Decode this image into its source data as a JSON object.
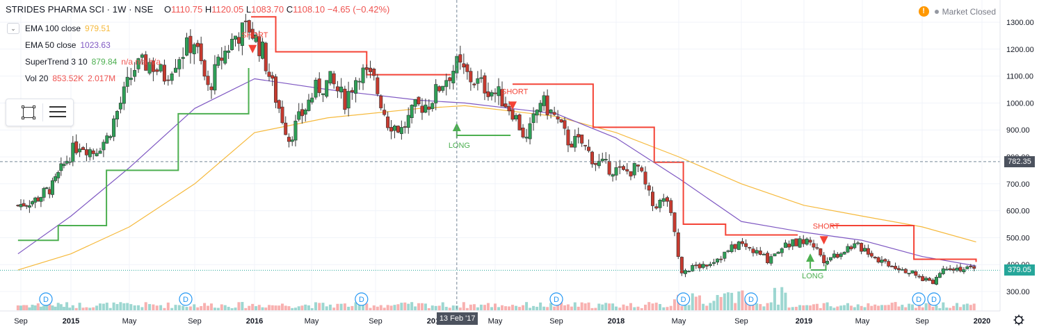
{
  "header": {
    "symbol": "STRIDES PHARMA SCI · 1W · NSE",
    "o_label": "O",
    "o": "1110.75",
    "h_label": "H",
    "h": "1120.05",
    "l_label": "L",
    "l": "1083.70",
    "c_label": "C",
    "c": "1108.10",
    "change": "−4.65 (−0.42%)"
  },
  "indicators": [
    {
      "name": "EMA 100 close",
      "value": "979.51",
      "color": "#f6b93b"
    },
    {
      "name": "EMA 50 close",
      "value": "1023.63",
      "color": "#7e57c2"
    },
    {
      "name": "SuperTrend 3 10",
      "value": "879.84",
      "extra": "n/a n/a n/a",
      "color": "#4caf50"
    },
    {
      "name": "Vol 20",
      "value": "853.52K",
      "extra": "2.017M",
      "color": "#ef5350"
    }
  ],
  "status": {
    "warning_icon": "!",
    "market": "Market Closed"
  },
  "price_tags": {
    "last": "379.05",
    "cross": "782.35"
  },
  "crosshair": {
    "date": "13 Feb '17"
  },
  "colors": {
    "up": "#26a69a",
    "up_candle": "#2e9f57",
    "down": "#ef5350",
    "down_candle": "#c63a2f",
    "supertrend_up": "#4caf50",
    "supertrend_down": "#f44336",
    "ema100": "#f6b93b",
    "ema50": "#7e57c2"
  },
  "chart_data": {
    "type": "candlestick",
    "symbol": "STRIDES PHARMA SCI",
    "interval": "1W",
    "exchange": "NSE",
    "y_axis": {
      "range": [
        265,
        1340
      ],
      "ticks": [
        300,
        400,
        500,
        600,
        700,
        800,
        900,
        1000,
        1100,
        1200,
        1300
      ],
      "tick_labels": [
        "300.00",
        "400.00",
        "500.00",
        "600.00",
        "700.00",
        "800.00",
        "900.00",
        "1000.00",
        "1100.00",
        "1200.00",
        "1300.00"
      ]
    },
    "x_axis": {
      "ticks": [
        "Sep",
        "2015",
        "May",
        "Sep",
        "2016",
        "May",
        "Sep",
        "2017",
        "May",
        "Sep",
        "2018",
        "May",
        "Sep",
        "2019",
        "May",
        "Sep",
        "2020"
      ],
      "tick_dates": [
        "2014-09-01",
        "2015-01-01",
        "2015-05-01",
        "2015-09-01",
        "2016-01-01",
        "2016-05-01",
        "2016-09-01",
        "2017-01-01",
        "2017-05-01",
        "2017-09-01",
        "2018-01-01",
        "2018-05-01",
        "2018-09-01",
        "2019-01-01",
        "2019-05-01",
        "2019-09-01",
        "2020-01-01"
      ]
    },
    "close_series": {
      "dates": [
        "2014-08-25",
        "2014-10-06",
        "2014-11-17",
        "2014-12-29",
        "2015-01-19",
        "2015-02-16",
        "2015-03-16",
        "2015-04-13",
        "2015-05-11",
        "2015-06-08",
        "2015-07-06",
        "2015-08-03",
        "2015-08-31",
        "2015-09-28",
        "2015-10-26",
        "2015-11-23",
        "2015-12-21",
        "2016-01-18",
        "2016-02-15",
        "2016-03-14",
        "2016-04-11",
        "2016-05-09",
        "2016-06-06",
        "2016-07-04",
        "2016-08-01",
        "2016-08-29",
        "2016-09-26",
        "2016-10-24",
        "2016-11-21",
        "2016-12-19",
        "2017-01-16",
        "2017-02-13",
        "2017-03-13",
        "2017-04-10",
        "2017-05-08",
        "2017-06-05",
        "2017-07-03",
        "2017-07-31",
        "2017-08-28",
        "2017-09-25",
        "2017-10-23",
        "2017-11-20",
        "2017-12-18",
        "2018-01-15",
        "2018-02-12",
        "2018-03-12",
        "2018-04-09",
        "2018-05-07",
        "2018-06-04",
        "2018-07-02",
        "2018-07-30",
        "2018-08-27",
        "2018-09-24",
        "2018-10-22",
        "2018-11-19",
        "2018-12-17",
        "2019-01-14",
        "2019-02-11",
        "2019-03-11",
        "2019-04-08",
        "2019-05-06",
        "2019-06-03",
        "2019-07-01",
        "2019-07-29",
        "2019-08-26",
        "2019-09-23",
        "2019-10-21",
        "2019-11-18",
        "2019-12-16"
      ],
      "values": [
        620,
        640,
        690,
        810,
        850,
        820,
        870,
        1000,
        1130,
        1150,
        1100,
        1180,
        1230,
        1050,
        1170,
        1250,
        1280,
        1190,
        1020,
        870,
        960,
        1050,
        1080,
        1010,
        1120,
        1080,
        930,
        900,
        980,
        1000,
        1080,
        1140,
        1090,
        1060,
        1030,
        970,
        860,
        1010,
        950,
        860,
        850,
        780,
        760,
        740,
        760,
        620,
        640,
        380,
        390,
        410,
        440,
        480,
        450,
        420,
        470,
        480,
        490,
        420,
        440,
        470,
        460,
        420,
        400,
        380,
        350,
        340,
        395,
        385,
        379
      ]
    },
    "volume": {
      "unit": "shares",
      "last_avg_20": "853.52K",
      "last": "2.017M"
    },
    "ema100": {
      "dates": [
        "2014-08-25",
        "2015-01-01",
        "2015-05-01",
        "2015-09-01",
        "2016-01-01",
        "2016-06-01",
        "2016-12-01",
        "2017-03-01",
        "2017-09-01",
        "2018-01-01",
        "2018-05-01",
        "2018-09-01",
        "2019-01-01",
        "2019-05-01",
        "2019-09-01",
        "2019-12-20"
      ],
      "values": [
        380,
        440,
        540,
        700,
        890,
        945,
        980,
        990,
        950,
        890,
        800,
        700,
        620,
        580,
        540,
        484
      ]
    },
    "ema50": {
      "dates": [
        "2014-08-25",
        "2015-01-01",
        "2015-05-01",
        "2015-09-01",
        "2016-01-01",
        "2016-06-01",
        "2016-12-01",
        "2017-03-01",
        "2017-09-01",
        "2018-01-01",
        "2018-05-01",
        "2018-09-01",
        "2019-01-01",
        "2019-05-01",
        "2019-09-01",
        "2019-12-20"
      ],
      "values": [
        440,
        580,
        760,
        980,
        1090,
        1050,
        1010,
        1000,
        960,
        870,
        720,
        560,
        520,
        490,
        430,
        395
      ]
    },
    "supertrend": [
      {
        "dir": "up",
        "dates": [
          "2014-08-25",
          "2014-12-01",
          "2015-03-15",
          "2015-08-01",
          "2015-12-20"
        ],
        "values": [
          490,
          545,
          750,
          960,
          1130
        ]
      },
      {
        "dir": "down",
        "dates": [
          "2015-12-25",
          "2016-02-15",
          "2016-08-15",
          "2017-02-01"
        ],
        "values": [
          1320,
          1190,
          1105,
          1105
        ]
      },
      {
        "dir": "up",
        "dates": [
          "2017-02-13",
          "2017-06-01"
        ],
        "values": [
          880,
          880
        ]
      },
      {
        "dir": "down",
        "dates": [
          "2017-06-05",
          "2017-09-15",
          "2017-11-15",
          "2018-03-15",
          "2018-05-10",
          "2018-08-01",
          "2018-12-20"
        ],
        "values": [
          1070,
          1070,
          910,
          780,
          550,
          510,
          510
        ]
      },
      {
        "dir": "up",
        "dates": [
          "2019-01-15",
          "2019-02-15"
        ],
        "values": [
          380,
          400
        ]
      },
      {
        "dir": "down",
        "dates": [
          "2019-02-25",
          "2019-06-01",
          "2019-08-15",
          "2019-12-20"
        ],
        "values": [
          545,
          545,
          420,
          410
        ]
      }
    ],
    "signals": [
      {
        "type": "SHORT",
        "date": "2015-12-28",
        "value": 1200
      },
      {
        "type": "LONG",
        "date": "2017-02-13",
        "value": 880
      },
      {
        "type": "SHORT",
        "date": "2017-06-05",
        "value": 990
      },
      {
        "type": "LONG",
        "date": "2019-01-14",
        "value": 395
      },
      {
        "type": "SHORT",
        "date": "2019-02-11",
        "value": 490
      }
    ],
    "dividends": {
      "label": "D",
      "dates": [
        "2014-11-01",
        "2015-08-15",
        "2016-08-05",
        "2017-09-01",
        "2018-05-10",
        "2018-09-20",
        "2019-08-25",
        "2019-09-25"
      ]
    },
    "last_price": 379.05,
    "crosshair_price": 782.35
  }
}
